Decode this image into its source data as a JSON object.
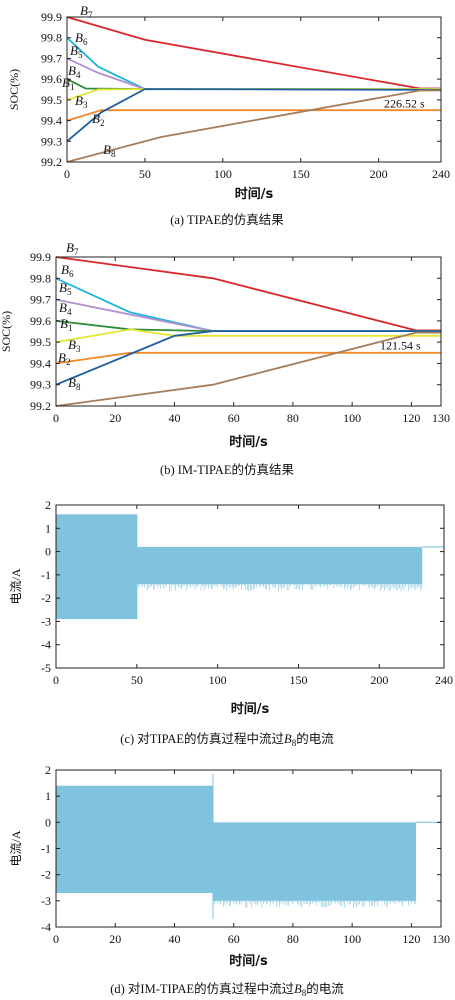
{
  "colors": {
    "B1": "#e6e633",
    "B2": "#1f5fa0",
    "B3": "#f08a2a",
    "B4": "#2e8b3a",
    "B5": "#b38fd0",
    "B6": "#1fb4e0",
    "B7": "#d9262b",
    "B8": "#a67c5a",
    "current": "#7fc3df",
    "axis": "#222222"
  },
  "chart_data": [
    {
      "id": "a",
      "type": "line",
      "caption": "(a) TIPAE的仿真结果",
      "xlabel": "时间/s",
      "ylabel": "SOC(%)",
      "xlim": [
        0,
        240
      ],
      "ylim": [
        99.2,
        99.9
      ],
      "xticks": [
        0,
        50,
        100,
        150,
        200,
        240
      ],
      "yticks": [
        99.2,
        99.3,
        99.4,
        99.5,
        99.6,
        99.7,
        99.8,
        99.9
      ],
      "annotation": {
        "text": "226.52 s",
        "x": 226.52,
        "y": 99.55
      },
      "series": [
        {
          "name": "B7",
          "x": [
            0,
            50,
            226.52,
            240
          ],
          "y": [
            99.9,
            99.79,
            99.555,
            99.555
          ]
        },
        {
          "name": "B6",
          "x": [
            0,
            20,
            50,
            240
          ],
          "y": [
            99.8,
            99.66,
            99.552,
            99.552
          ]
        },
        {
          "name": "B5",
          "x": [
            0,
            20,
            50,
            240
          ],
          "y": [
            99.7,
            99.63,
            99.552,
            99.552
          ]
        },
        {
          "name": "B4",
          "x": [
            0,
            12,
            50,
            240
          ],
          "y": [
            99.6,
            99.555,
            99.552,
            99.552
          ]
        },
        {
          "name": "B1",
          "x": [
            0,
            20,
            50,
            240
          ],
          "y": [
            99.5,
            99.55,
            99.552,
            99.552
          ]
        },
        {
          "name": "B3",
          "x": [
            0,
            22,
            240
          ],
          "y": [
            99.4,
            99.45,
            99.45
          ]
        },
        {
          "name": "B2",
          "x": [
            0,
            22,
            50,
            240
          ],
          "y": [
            99.3,
            99.44,
            99.552,
            99.548
          ]
        },
        {
          "name": "B8",
          "x": [
            0,
            60,
            226.52,
            240
          ],
          "y": [
            99.2,
            99.32,
            99.545,
            99.545
          ]
        }
      ]
    },
    {
      "id": "b",
      "type": "line",
      "caption": "(b) IM-TIPAE的仿真结果",
      "xlabel": "时间/s",
      "ylabel": "SOC(%)",
      "xlim": [
        0,
        130
      ],
      "ylim": [
        99.2,
        99.9
      ],
      "xticks": [
        0,
        20,
        40,
        60,
        80,
        100,
        120,
        130
      ],
      "yticks": [
        99.2,
        99.3,
        99.4,
        99.5,
        99.6,
        99.7,
        99.8,
        99.9
      ],
      "annotation": {
        "text": "121.54 s",
        "x": 121.54,
        "y": 99.55
      },
      "series": [
        {
          "name": "B7",
          "x": [
            0,
            53,
            121.54,
            130
          ],
          "y": [
            99.9,
            99.8,
            99.555,
            99.555
          ]
        },
        {
          "name": "B6",
          "x": [
            0,
            25,
            53,
            130
          ],
          "y": [
            99.8,
            99.64,
            99.552,
            99.552
          ]
        },
        {
          "name": "B5",
          "x": [
            0,
            25,
            53,
            130
          ],
          "y": [
            99.7,
            99.63,
            99.552,
            99.552
          ]
        },
        {
          "name": "B4",
          "x": [
            0,
            25,
            53,
            130
          ],
          "y": [
            99.6,
            99.56,
            99.552,
            99.552
          ]
        },
        {
          "name": "B1",
          "x": [
            0,
            25,
            40,
            130
          ],
          "y": [
            99.5,
            99.56,
            99.53,
            99.53
          ]
        },
        {
          "name": "B3",
          "x": [
            0,
            25,
            130
          ],
          "y": [
            99.4,
            99.45,
            99.45
          ]
        },
        {
          "name": "B2",
          "x": [
            0,
            40,
            53,
            130
          ],
          "y": [
            99.3,
            99.53,
            99.552,
            99.552
          ]
        },
        {
          "name": "B8",
          "x": [
            0,
            53,
            121.54,
            130
          ],
          "y": [
            99.2,
            99.3,
            99.545,
            99.545
          ]
        }
      ]
    },
    {
      "id": "c",
      "type": "area",
      "caption_prefix": "(c) 对TIPAE的仿真过程中流过",
      "caption_var": "B",
      "caption_sub": "8",
      "caption_suffix": "的电流",
      "xlabel": "时间/s",
      "ylabel": "电流/A",
      "xlim": [
        0,
        240
      ],
      "ylim": [
        -5,
        2
      ],
      "xticks": [
        0,
        50,
        100,
        150,
        200,
        240
      ],
      "yticks": [
        2,
        1,
        0,
        -1,
        -2,
        -3,
        -4,
        -5
      ],
      "bands": [
        {
          "x_start": 0,
          "x_end": 50,
          "upper": 1.6,
          "lower": -2.9
        },
        {
          "x_start": 50,
          "x_end": 226.52,
          "upper": 0.2,
          "lower": -1.4
        },
        {
          "x_start": 226.52,
          "x_end": 240,
          "upper": 0.2,
          "lower": 0.2
        }
      ]
    },
    {
      "id": "d",
      "type": "area",
      "caption_prefix": "(d) 对IM-TIPAE的仿真过程中流过",
      "caption_var": "B",
      "caption_sub": "8",
      "caption_suffix": "的电流",
      "xlabel": "时间/s",
      "ylabel": "电流/A",
      "xlim": [
        0,
        130
      ],
      "ylim": [
        -4,
        2
      ],
      "xticks": [
        0,
        20,
        40,
        60,
        80,
        100,
        120,
        130
      ],
      "yticks": [
        2,
        1,
        0,
        -1,
        -2,
        -3,
        -4
      ],
      "bands": [
        {
          "x_start": 0,
          "x_end": 53,
          "upper": 1.4,
          "lower": -2.7
        },
        {
          "x_start": 53,
          "x_end": 121.54,
          "upper": 0.0,
          "lower": -3.0
        },
        {
          "x_start": 121.54,
          "x_end": 130,
          "upper": 0.0,
          "lower": 0.0
        }
      ]
    }
  ]
}
